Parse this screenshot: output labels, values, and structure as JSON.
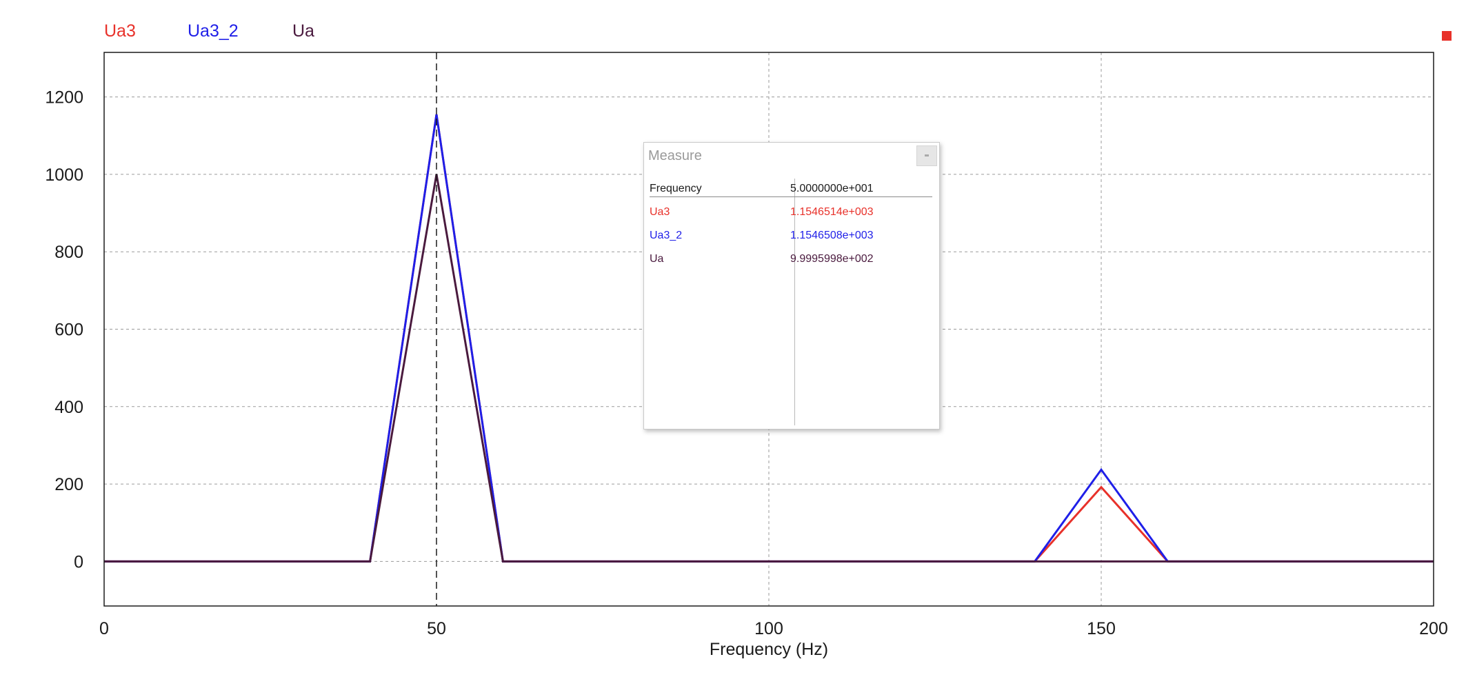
{
  "chart_data": {
    "type": "line",
    "xlabel": "Frequency (Hz)",
    "ylabel": "",
    "xlim": [
      0,
      200
    ],
    "ylim": [
      -115,
      1315
    ],
    "xticks": [
      0,
      50,
      100,
      150,
      200
    ],
    "yticks": [
      0,
      200,
      400,
      600,
      800,
      1000,
      1200
    ],
    "grid": true,
    "legend_placement": "top-left",
    "cursor_x": 50,
    "series": [
      {
        "name": "Ua3",
        "color": "#e8312a",
        "x": [
          0,
          40,
          50,
          60,
          140,
          150,
          160,
          200
        ],
        "y": [
          0,
          0,
          1154.65,
          0,
          0,
          192,
          0,
          0
        ]
      },
      {
        "name": "Ua3_2",
        "color": "#1f1fe8",
        "x": [
          0,
          40,
          50,
          60,
          140,
          150,
          160,
          200
        ],
        "y": [
          0,
          0,
          1154.65,
          0,
          0,
          237,
          0,
          0
        ]
      },
      {
        "name": "Ua",
        "color": "#4a1a3e",
        "x": [
          0,
          40,
          50,
          60,
          200
        ],
        "y": [
          0,
          0,
          1000,
          0,
          0
        ]
      }
    ]
  },
  "measure": {
    "title": "Measure",
    "rows": [
      {
        "label": "Frequency",
        "value": "5.0000000e+001",
        "color": "#1a1a1a"
      },
      {
        "label": "Ua3",
        "value": "1.1546514e+003",
        "color": "#e8312a"
      },
      {
        "label": "Ua3_2",
        "value": "1.1546508e+003",
        "color": "#1f1fe8"
      },
      {
        "label": "Ua",
        "value": "9.9995998e+002",
        "color": "#4a1a3e"
      }
    ]
  }
}
